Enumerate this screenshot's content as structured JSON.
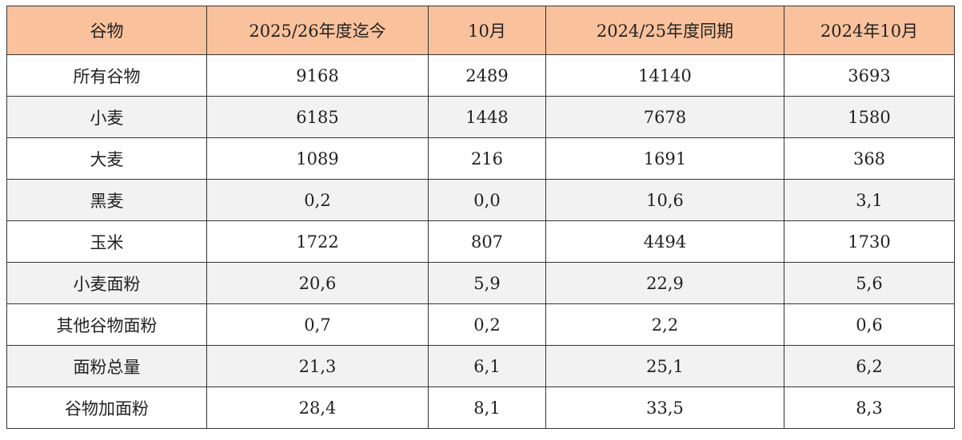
{
  "table": {
    "header": [
      "谷物",
      "2025/26年度迄今",
      "10月",
      "2024/25年度同期",
      "2024年10月"
    ],
    "rows": [
      [
        "所有谷物",
        "9168",
        "2489",
        "14140",
        "3693"
      ],
      [
        "小麦",
        "6185",
        "1448",
        "7678",
        "1580"
      ],
      [
        "大麦",
        "1089",
        "216",
        "1691",
        "368"
      ],
      [
        "黑麦",
        "0,2",
        "0,0",
        "10,6",
        "3,1"
      ],
      [
        "玉米",
        "1722",
        "807",
        "4494",
        "1730"
      ],
      [
        "小麦面粉",
        "20,6",
        "5,9",
        "22,9",
        "5,6"
      ],
      [
        "其他谷物面粉",
        "0,7",
        "0,2",
        "2,2",
        "0,6"
      ],
      [
        "面粉总量",
        "21,3",
        "6,1",
        "25,1",
        "6,2"
      ],
      [
        "谷物加面粉",
        "28,4",
        "8,1",
        "33,5",
        "8,3"
      ]
    ]
  }
}
